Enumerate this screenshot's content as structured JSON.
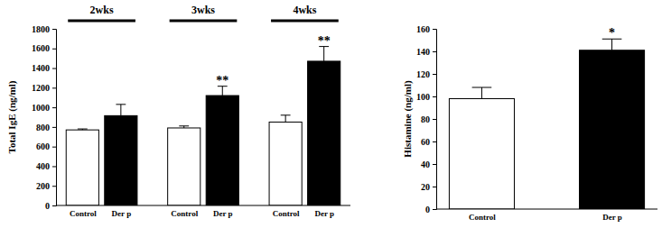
{
  "chart_data": [
    {
      "type": "bar",
      "y_label": "Total IgE (ng/ml)",
      "group_labels": [
        "2wks",
        "3wks",
        "4wks"
      ],
      "categories": [
        "Control",
        "Der p",
        "Control",
        "Der p",
        "Control",
        "Der p"
      ],
      "values": [
        770,
        915,
        790,
        1120,
        850,
        1470
      ],
      "errors": [
        10,
        115,
        20,
        95,
        70,
        150
      ],
      "colors": [
        "#ffffff",
        "#000000",
        "#ffffff",
        "#000000",
        "#ffffff",
        "#000000"
      ],
      "annotations": [
        null,
        null,
        null,
        "**",
        null,
        "**"
      ],
      "ylim": [
        0,
        1800
      ],
      "yticks": [
        0,
        200,
        400,
        600,
        800,
        1000,
        1200,
        1400,
        1600,
        1800
      ]
    },
    {
      "type": "bar",
      "y_label": "Histamine (ng/ml)",
      "categories": [
        "Control",
        "Der p"
      ],
      "values": [
        98,
        141
      ],
      "errors": [
        10,
        10
      ],
      "colors": [
        "#ffffff",
        "#000000"
      ],
      "annotations": [
        null,
        "*"
      ],
      "ylim": [
        0,
        160
      ],
      "yticks": [
        0,
        20,
        40,
        60,
        80,
        100,
        120,
        140,
        160
      ]
    }
  ]
}
